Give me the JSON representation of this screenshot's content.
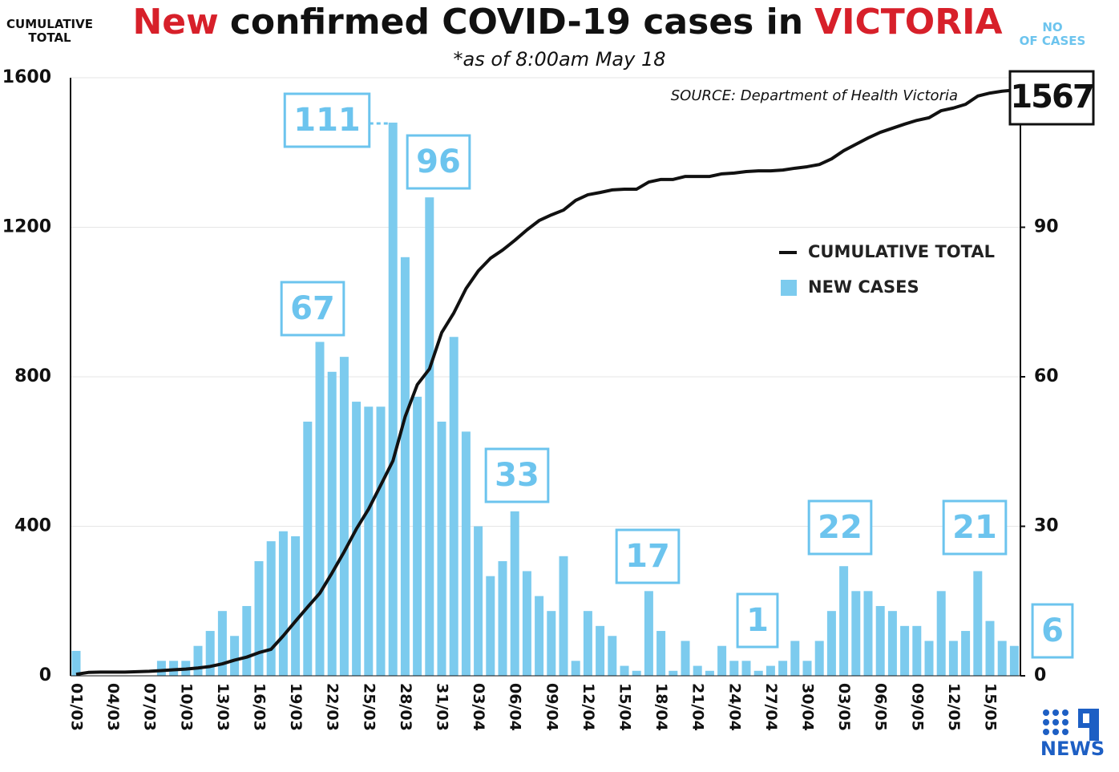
{
  "chart_data": {
    "type": "bar-line",
    "title_parts": [
      {
        "text": "New",
        "color": "#d7202a"
      },
      {
        "text": "confirmed COVID-19 cases in",
        "color": "#111111"
      },
      {
        "text": "VICTORIA",
        "color": "#d7202a"
      }
    ],
    "subtitle": "*as of 8:00am May 18",
    "source": "SOURCE: Department of Health Victoria",
    "ylabel": "CUMULATIVE TOTAL",
    "y2label": "NO OF CASES",
    "logo": "NEWS",
    "categories": [
      "01/03",
      null,
      null,
      "04/03",
      null,
      null,
      "07/03",
      null,
      null,
      "10/03",
      null,
      null,
      "13/03",
      null,
      null,
      "16/03",
      null,
      null,
      "19/03",
      null,
      null,
      "22/03",
      null,
      null,
      "25/03",
      null,
      null,
      "28/03",
      null,
      null,
      "31/03",
      null,
      null,
      "03/04",
      null,
      null,
      "06/04",
      null,
      null,
      "09/04",
      null,
      null,
      "12/04",
      null,
      null,
      "15/04",
      null,
      null,
      "18/04",
      null,
      null,
      "21/04",
      null,
      null,
      "24/04",
      null,
      null,
      "27/04",
      null,
      null,
      "30/04",
      null,
      null,
      "03/05",
      null,
      null,
      "06/05",
      null,
      null,
      "09/05",
      null,
      null,
      "12/05",
      null,
      null,
      "15/05",
      null,
      null
    ],
    "series": [
      {
        "name": "CUMULATIVE TOTAL",
        "type": "line",
        "axis": "y",
        "color": "#111111",
        "values": [
          4,
          9,
          10,
          10,
          10,
          11,
          12,
          14,
          16,
          18,
          21,
          25,
          32,
          42,
          50,
          62,
          71,
          107,
          146,
          184,
          221,
          275,
          332,
          393,
          446,
          510,
          575,
          693,
          779,
          821,
          918,
          971,
          1036,
          1083,
          1117,
          1139,
          1165,
          1193,
          1218,
          1233,
          1246,
          1272,
          1287,
          1293,
          1300,
          1302,
          1302,
          1321,
          1328,
          1328,
          1336,
          1336,
          1336,
          1343,
          1345,
          1349,
          1351,
          1351,
          1353,
          1358,
          1362,
          1368,
          1383,
          1405,
          1422,
          1439,
          1454,
          1465,
          1476,
          1486,
          1493,
          1512,
          1519,
          1529,
          1551,
          1559,
          1564,
          1567
        ]
      },
      {
        "name": "NEW CASES",
        "type": "bar",
        "axis": "y2",
        "color": "#7ccbee",
        "values": [
          5,
          0,
          0,
          0,
          0,
          0,
          0,
          3,
          3,
          3,
          6,
          9,
          13,
          8,
          14,
          23,
          27,
          29,
          28,
          51,
          67,
          61,
          64,
          55,
          54,
          54,
          111,
          84,
          56,
          96,
          51,
          68,
          49,
          30,
          20,
          23,
          33,
          21,
          16,
          13,
          24,
          3,
          13,
          10,
          8,
          2,
          1,
          17,
          9,
          1,
          7,
          2,
          1,
          6,
          3,
          3,
          1,
          2,
          3,
          7,
          3,
          7,
          13,
          22,
          17,
          17,
          14,
          13,
          10,
          10,
          7,
          17,
          7,
          9,
          21,
          11,
          7,
          6
        ]
      }
    ],
    "ylim": [
      0,
      1600
    ],
    "yticks": [
      0,
      400,
      800,
      1200,
      1600
    ],
    "y2lim": [
      0,
      120
    ],
    "y2ticks": [
      0,
      30,
      60,
      90
    ],
    "grid": true,
    "legend": "upper right"
  }
}
